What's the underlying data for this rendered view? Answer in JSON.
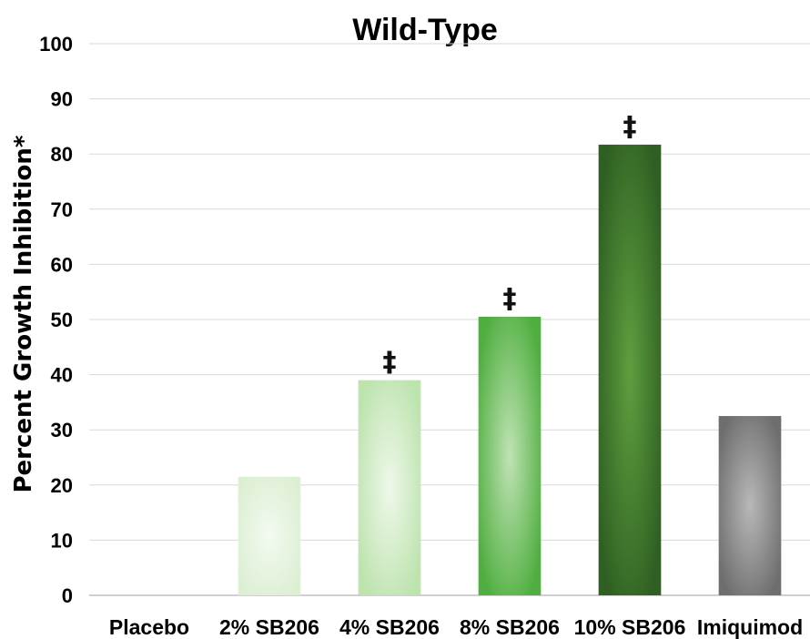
{
  "chart_data": {
    "type": "bar",
    "title": "Wild-Type",
    "ylabel": "Percent Growth Inhibition*",
    "xlabel": "",
    "ylim": [
      0,
      100
    ],
    "yticks": [
      0,
      10,
      20,
      30,
      40,
      50,
      60,
      70,
      80,
      90,
      100
    ],
    "categories": [
      "Placebo",
      "2% SB206",
      "4% SB206",
      "8% SB206",
      "10% SB206",
      "Imiquimod"
    ],
    "values": [
      0,
      21.5,
      39,
      50.5,
      81.7,
      32.5
    ],
    "annotations": [
      "",
      "",
      "‡",
      "‡",
      "‡",
      ""
    ],
    "bar_colors": [
      {
        "edge": "#ffffff",
        "center": "#ffffff"
      },
      {
        "edge": "#dcefd3",
        "center": "#f3faf0"
      },
      {
        "edge": "#bde3ae",
        "center": "#eef8ea"
      },
      {
        "edge": "#4fae3f",
        "center": "#bfe3b4"
      },
      {
        "edge": "#2f5f22",
        "center": "#5e9f3f"
      },
      {
        "edge": "#6e6e6e",
        "center": "#b8b8b8"
      }
    ],
    "grid": true,
    "legend": "none"
  }
}
